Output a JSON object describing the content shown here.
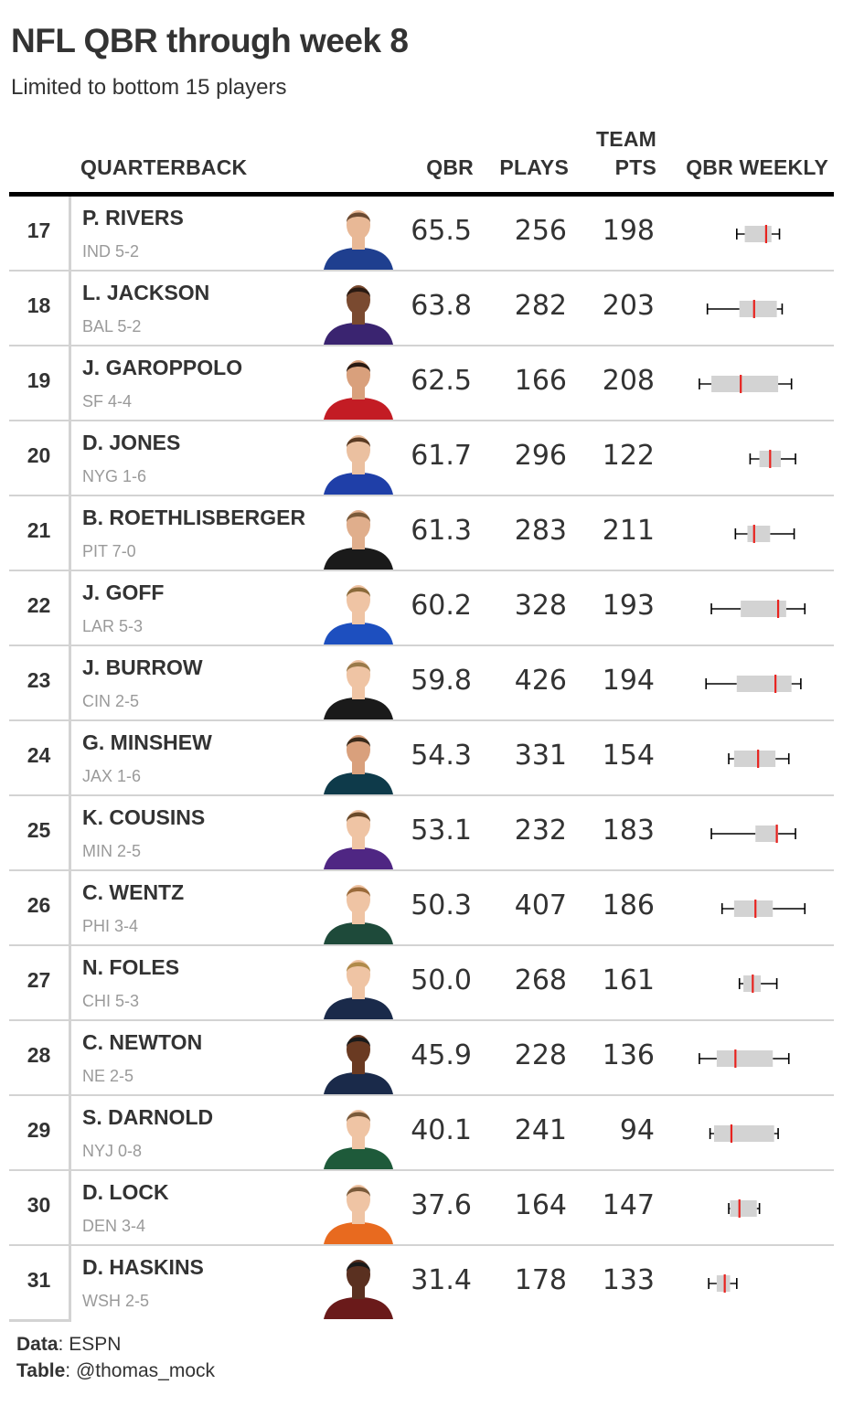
{
  "title": "NFL QBR through week 8",
  "subtitle": "Limited to bottom 15 players",
  "headers": {
    "quarterback": "QUARTERBACK",
    "qbr": "QBR",
    "plays": "PLAYS",
    "team_line1": "TEAM",
    "team_line2": "PTS",
    "weekly": "QBR WEEKLY"
  },
  "footer": {
    "data_label": "Data",
    "data_value": ": ESPN",
    "table_label": "Table",
    "table_value": ": @thomas_mock"
  },
  "colors": {
    "median": "#e8231f",
    "box": "#d3d3d3",
    "whisker": "#000000",
    "divider": "#d3d3d3",
    "team_text": "#9a9a9a"
  },
  "chart_data": {
    "type": "table",
    "weekly_axis": [
      0,
      100
    ],
    "rows": [
      {
        "rank": "17",
        "name": "P. RIVERS",
        "team": "IND 5-2",
        "qbr": "65.5",
        "plays": "256",
        "pts": "198",
        "jersey": "#1f3f8f",
        "skin": "#e8b896",
        "hair": "#6a4a32",
        "weekly": {
          "min": 30,
          "q1": 36,
          "med": 52,
          "q3": 56,
          "max": 62
        }
      },
      {
        "rank": "18",
        "name": "L. JACKSON",
        "team": "BAL 5-2",
        "qbr": "63.8",
        "plays": "282",
        "pts": "203",
        "jersey": "#3a2470",
        "skin": "#7a4a30",
        "hair": "#2a1a12",
        "weekly": {
          "min": 8,
          "q1": 32,
          "med": 43,
          "q3": 60,
          "max": 64
        }
      },
      {
        "rank": "19",
        "name": "J. GAROPPOLO",
        "team": "SF 4-4",
        "qbr": "62.5",
        "plays": "166",
        "pts": "208",
        "jersey": "#c31c24",
        "skin": "#d9a07c",
        "hair": "#2a1a12",
        "weekly": {
          "min": 2,
          "q1": 11,
          "med": 33,
          "q3": 61,
          "max": 71
        }
      },
      {
        "rank": "20",
        "name": "D. JONES",
        "team": "NYG 1-6",
        "qbr": "61.7",
        "plays": "296",
        "pts": "122",
        "jersey": "#1f3fa8",
        "skin": "#ebc0a0",
        "hair": "#5a3a22",
        "weekly": {
          "min": 40,
          "q1": 47,
          "med": 55,
          "q3": 63,
          "max": 74
        }
      },
      {
        "rank": "21",
        "name": "B. ROETHLISBERGER",
        "team": "PIT 7-0",
        "qbr": "61.3",
        "plays": "283",
        "pts": "211",
        "jersey": "#1a1a1a",
        "skin": "#e0ae8c",
        "hair": "#7a5a3a",
        "weekly": {
          "min": 29,
          "q1": 38,
          "med": 43,
          "q3": 55,
          "max": 73
        }
      },
      {
        "rank": "22",
        "name": "J. GOFF",
        "team": "LAR 5-3",
        "qbr": "60.2",
        "plays": "328",
        "pts": "193",
        "jersey": "#1d4fbf",
        "skin": "#efc4a4",
        "hair": "#8a6a3a",
        "weekly": {
          "min": 11,
          "q1": 33,
          "med": 61,
          "q3": 67,
          "max": 81
        }
      },
      {
        "rank": "23",
        "name": "J. BURROW",
        "team": "CIN 2-5",
        "qbr": "59.8",
        "plays": "426",
        "pts": "194",
        "jersey": "#1a1a1a",
        "skin": "#efc4a4",
        "hair": "#9a7a4a",
        "weekly": {
          "min": 7,
          "q1": 30,
          "med": 59,
          "q3": 71,
          "max": 78
        }
      },
      {
        "rank": "24",
        "name": "G. MINSHEW",
        "team": "JAX 1-6",
        "qbr": "54.3",
        "plays": "331",
        "pts": "154",
        "jersey": "#0e3a4a",
        "skin": "#d9a07c",
        "hair": "#3a2a1a",
        "weekly": {
          "min": 24,
          "q1": 28,
          "med": 46,
          "q3": 59,
          "max": 69
        }
      },
      {
        "rank": "25",
        "name": "K. COUSINS",
        "team": "MIN 2-5",
        "qbr": "53.1",
        "plays": "232",
        "pts": "183",
        "jersey": "#4f2683",
        "skin": "#efc4a4",
        "hair": "#6a4a2a",
        "weekly": {
          "min": 11,
          "q1": 44,
          "med": 60,
          "q3": 61,
          "max": 74
        }
      },
      {
        "rank": "26",
        "name": "C. WENTZ",
        "team": "PHI 3-4",
        "qbr": "50.3",
        "plays": "407",
        "pts": "186",
        "jersey": "#1e4a3a",
        "skin": "#efc4a4",
        "hair": "#9a6a3a",
        "weekly": {
          "min": 19,
          "q1": 28,
          "med": 44,
          "q3": 57,
          "max": 81
        }
      },
      {
        "rank": "27",
        "name": "N. FOLES",
        "team": "CHI 5-3",
        "qbr": "50.0",
        "plays": "268",
        "pts": "161",
        "jersey": "#1a2a4a",
        "skin": "#efc4a4",
        "hair": "#b08a4a",
        "weekly": {
          "min": 32,
          "q1": 35,
          "med": 42,
          "q3": 48,
          "max": 60
        }
      },
      {
        "rank": "28",
        "name": "C. NEWTON",
        "team": "NE 2-5",
        "qbr": "45.9",
        "plays": "228",
        "pts": "136",
        "jersey": "#1a2a4a",
        "skin": "#6a3a22",
        "hair": "#1a1a1a",
        "weekly": {
          "min": 2,
          "q1": 15,
          "med": 29,
          "q3": 57,
          "max": 69
        }
      },
      {
        "rank": "29",
        "name": "S. DARNOLD",
        "team": "NYJ 0-8",
        "qbr": "40.1",
        "plays": "241",
        "pts": "94",
        "jersey": "#1e5a3a",
        "skin": "#efc4a4",
        "hair": "#7a5a3a",
        "weekly": {
          "min": 10,
          "q1": 13,
          "med": 26,
          "q3": 58,
          "max": 61
        }
      },
      {
        "rank": "30",
        "name": "D. LOCK",
        "team": "DEN 3-4",
        "qbr": "37.6",
        "plays": "164",
        "pts": "147",
        "jersey": "#e86a1f",
        "skin": "#efc4a4",
        "hair": "#7a5a3a",
        "weekly": {
          "min": 24,
          "q1": 25,
          "med": 32,
          "q3": 45,
          "max": 47
        }
      },
      {
        "rank": "31",
        "name": "D. HASKINS",
        "team": "WSH 2-5",
        "qbr": "31.4",
        "plays": "178",
        "pts": "133",
        "jersey": "#6a1a1a",
        "skin": "#5a3020",
        "hair": "#1a1a1a",
        "weekly": {
          "min": 9,
          "q1": 15,
          "med": 21,
          "q3": 25,
          "max": 30
        }
      }
    ]
  }
}
